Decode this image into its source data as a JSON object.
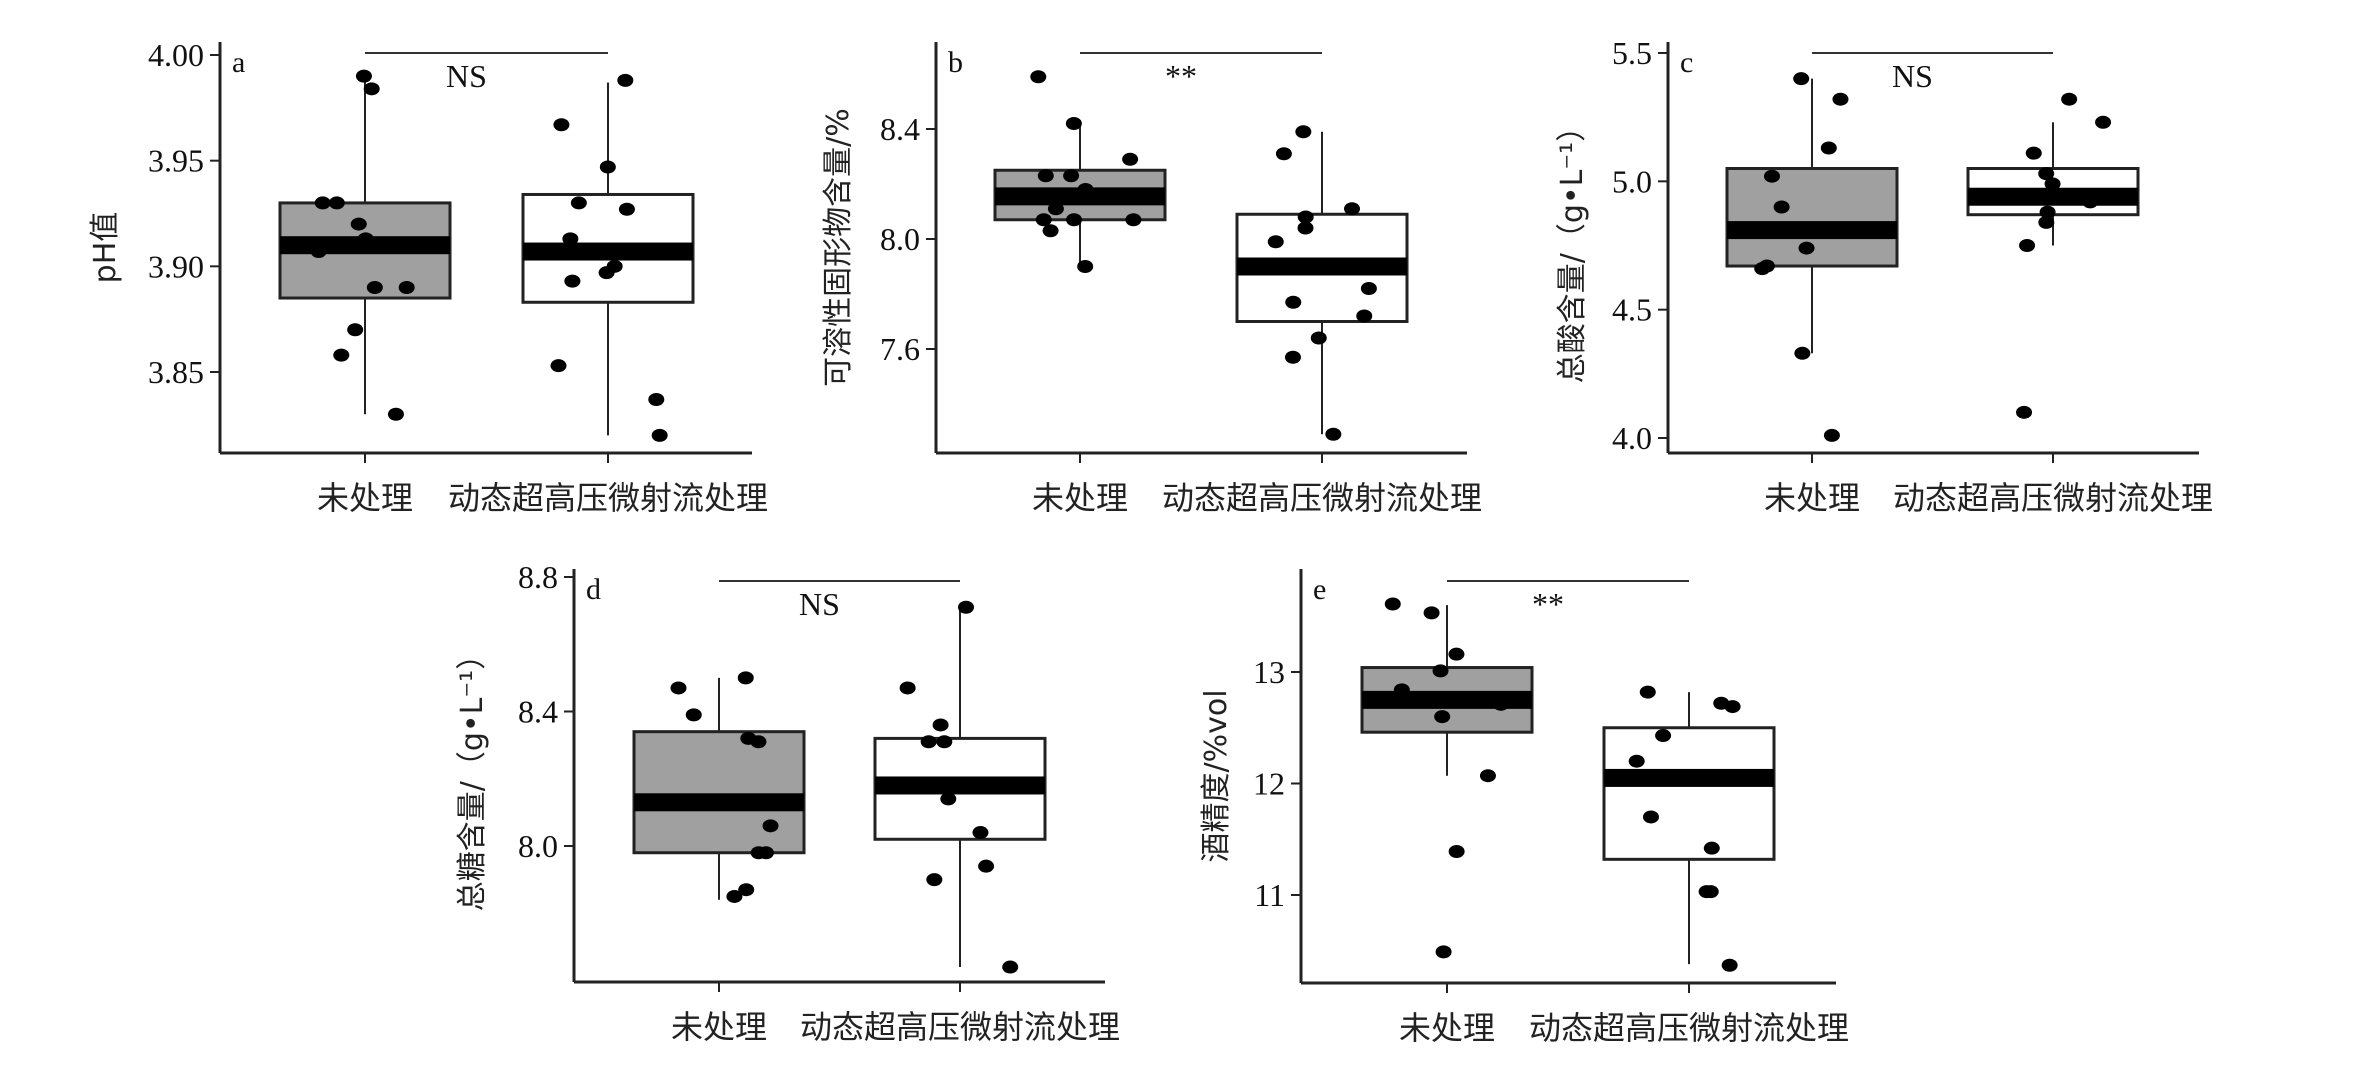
{
  "chart_data": [
    {
      "type": "box",
      "panel": "a",
      "ylabel": "pH值",
      "categories": [
        "未处理",
        "动态超高压微射流处理"
      ],
      "yticks": [
        "3.85",
        "3.90",
        "3.95",
        "4.00"
      ],
      "ytick_values": [
        3.85,
        3.9,
        3.95,
        4.0
      ],
      "significance": "NS",
      "fill_colors": [
        "#a0a0a0",
        "#ffffff"
      ],
      "series": [
        {
          "name": "未处理",
          "whisker": [
            3.83,
            3.99
          ],
          "q1": 3.885,
          "median": 3.91,
          "q3": 3.93,
          "points": [
            3.99,
            3.984,
            3.93,
            3.93,
            3.92,
            3.913,
            3.907,
            3.89,
            3.89,
            3.87,
            3.858,
            3.83
          ]
        },
        {
          "name": "动态超高压微射流处理",
          "whisker": [
            3.82,
            3.987
          ],
          "q1": 3.883,
          "median": 3.907,
          "q3": 3.934,
          "points": [
            3.988,
            3.967,
            3.947,
            3.93,
            3.927,
            3.913,
            3.9,
            3.897,
            3.893,
            3.853,
            3.837,
            3.82
          ]
        }
      ]
    },
    {
      "type": "box",
      "panel": "b",
      "ylabel": "可溶性固形物含量/%",
      "categories": [
        "未处理",
        "动态超高压微射流处理"
      ],
      "yticks": [
        "7.6",
        "8.0",
        "8.4"
      ],
      "ytick_values": [
        7.6,
        8.0,
        8.4
      ],
      "significance": "**",
      "fill_colors": [
        "#a0a0a0",
        "#ffffff"
      ],
      "series": [
        {
          "name": "未处理",
          "whisker": [
            7.9,
            8.42
          ],
          "q1": 8.07,
          "median": 8.155,
          "q3": 8.25,
          "points": [
            8.59,
            8.42,
            8.29,
            8.23,
            8.23,
            8.18,
            8.15,
            8.11,
            8.07,
            8.07,
            8.07,
            8.03,
            7.9
          ]
        },
        {
          "name": "动态超高压微射流处理",
          "whisker": [
            7.29,
            8.39
          ],
          "q1": 7.7,
          "median": 7.9,
          "q3": 8.09,
          "points": [
            8.39,
            8.31,
            8.11,
            8.08,
            8.04,
            7.99,
            7.82,
            7.77,
            7.72,
            7.64,
            7.57,
            7.29
          ]
        }
      ]
    },
    {
      "type": "box",
      "panel": "c",
      "ylabel": "总酸含量/（g•L⁻¹）",
      "categories": [
        "未处理",
        "动态超高压微射流处理"
      ],
      "yticks": [
        "4.0",
        "4.5",
        "5.0",
        "5.5"
      ],
      "ytick_values": [
        4.0,
        4.5,
        5.0,
        5.5
      ],
      "significance": "NS",
      "fill_colors": [
        "#a0a0a0",
        "#ffffff"
      ],
      "series": [
        {
          "name": "未处理",
          "whisker": [
            4.33,
            5.4
          ],
          "q1": 4.67,
          "median": 4.81,
          "q3": 5.05,
          "points": [
            5.4,
            5.32,
            5.13,
            5.02,
            4.9,
            4.74,
            4.67,
            4.66,
            4.33,
            4.01
          ]
        },
        {
          "name": "动态超高压微射流处理",
          "whisker": [
            4.75,
            5.23
          ],
          "q1": 4.87,
          "median": 4.94,
          "q3": 5.05,
          "points": [
            5.32,
            5.23,
            5.11,
            5.03,
            4.99,
            4.93,
            4.92,
            4.88,
            4.84,
            4.75,
            4.1
          ]
        }
      ]
    },
    {
      "type": "box",
      "panel": "d",
      "ylabel": "总糖含量/（g•L⁻¹）",
      "categories": [
        "未处理",
        "动态超高压微射流处理"
      ],
      "yticks": [
        "8.0",
        "8.4",
        "8.8"
      ],
      "ytick_values": [
        8.0,
        8.4,
        8.8
      ],
      "significance": "NS",
      "fill_colors": [
        "#a0a0a0",
        "#ffffff"
      ],
      "series": [
        {
          "name": "未处理",
          "whisker": [
            7.84,
            8.5
          ],
          "q1": 7.98,
          "median": 8.13,
          "q3": 8.34,
          "points": [
            8.5,
            8.47,
            8.39,
            8.32,
            8.31,
            8.06,
            7.98,
            7.98,
            7.87,
            7.85
          ]
        },
        {
          "name": "动态超高压微射流处理",
          "whisker": [
            7.64,
            8.71
          ],
          "q1": 8.02,
          "median": 8.18,
          "q3": 8.32,
          "points": [
            8.71,
            8.47,
            8.36,
            8.31,
            8.31,
            8.14,
            8.04,
            7.94,
            7.9,
            7.64
          ]
        }
      ]
    },
    {
      "type": "box",
      "panel": "e",
      "ylabel": "酒精度/%vol",
      "categories": [
        "未处理",
        "动态超高压微射流处理"
      ],
      "yticks": [
        "11",
        "12",
        "13"
      ],
      "ytick_values": [
        11,
        12,
        13
      ],
      "significance": "**",
      "fill_colors": [
        "#a0a0a0",
        "#ffffff"
      ],
      "series": [
        {
          "name": "未处理",
          "whisker": [
            12.07,
            13.6
          ],
          "q1": 12.46,
          "median": 12.75,
          "q3": 13.04,
          "points": [
            13.61,
            13.53,
            13.16,
            13.01,
            12.84,
            12.71,
            12.6,
            12.07,
            11.39,
            10.49
          ]
        },
        {
          "name": "动态超高压微射流处理",
          "whisker": [
            10.38,
            12.82
          ],
          "q1": 11.32,
          "median": 12.05,
          "q3": 12.5,
          "points": [
            12.82,
            12.72,
            12.69,
            12.43,
            12.2,
            11.7,
            11.42,
            11.03,
            11.03,
            10.37
          ]
        }
      ]
    }
  ]
}
